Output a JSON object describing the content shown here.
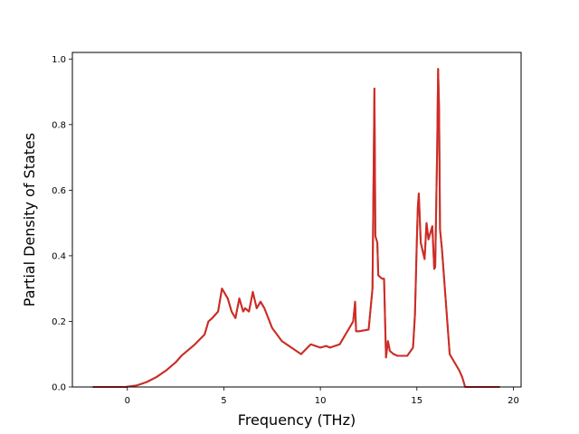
{
  "chart_data": {
    "type": "line",
    "title": "",
    "xlabel": "Frequency (THz)",
    "ylabel": "Partial Density of States",
    "xlim": [
      -2.85,
      20.4
    ],
    "ylim": [
      0.0,
      1.02
    ],
    "xticks": [
      0,
      5,
      10,
      15,
      20
    ],
    "xtick_labels": [
      "0",
      "5",
      "10",
      "15",
      "20"
    ],
    "yticks": [
      0.0,
      0.2,
      0.4,
      0.6,
      0.8,
      1.0
    ],
    "ytick_labels": [
      "0.0",
      "0.2",
      "0.4",
      "0.6",
      "0.8",
      "1.0"
    ],
    "grid": false,
    "legend": "none",
    "series": [
      {
        "color": "#2ca02c",
        "x": [
          -1.8,
          -0.1,
          0.5,
          1.0,
          1.5,
          2.0,
          2.5,
          2.8,
          3.0,
          3.5,
          4.0,
          4.2,
          4.4,
          4.7,
          4.9,
          5.2,
          5.4,
          5.6,
          5.8,
          6.0,
          6.1,
          6.3,
          6.5,
          6.7,
          6.9,
          7.1,
          7.5,
          8.0,
          8.5,
          9.0,
          9.5,
          10.0,
          10.3,
          10.5,
          11.0,
          11.5,
          11.7,
          11.8,
          11.85,
          12.0,
          12.5,
          12.7,
          12.8,
          12.85,
          12.95,
          13.0,
          13.2,
          13.3,
          13.4,
          13.5,
          13.6,
          13.8,
          14.0,
          14.5,
          14.8,
          14.9,
          15.0,
          15.05,
          15.1,
          15.2,
          15.4,
          15.5,
          15.6,
          15.8,
          15.9,
          15.95,
          16.05,
          16.1,
          16.15,
          16.2,
          16.3,
          16.5,
          16.7,
          17.0,
          17.2,
          17.35,
          17.5,
          18.0,
          19.3
        ],
        "y": [
          0.0,
          0.0,
          0.005,
          0.015,
          0.03,
          0.05,
          0.075,
          0.095,
          0.105,
          0.13,
          0.16,
          0.2,
          0.21,
          0.23,
          0.3,
          0.27,
          0.23,
          0.21,
          0.27,
          0.23,
          0.24,
          0.23,
          0.29,
          0.24,
          0.26,
          0.24,
          0.18,
          0.14,
          0.12,
          0.1,
          0.13,
          0.12,
          0.125,
          0.12,
          0.13,
          0.18,
          0.2,
          0.26,
          0.17,
          0.17,
          0.175,
          0.3,
          0.91,
          0.46,
          0.44,
          0.34,
          0.33,
          0.33,
          0.09,
          0.14,
          0.11,
          0.1,
          0.095,
          0.095,
          0.12,
          0.22,
          0.45,
          0.55,
          0.59,
          0.44,
          0.39,
          0.5,
          0.45,
          0.49,
          0.36,
          0.365,
          0.72,
          0.97,
          0.85,
          0.48,
          0.42,
          0.26,
          0.1,
          0.07,
          0.05,
          0.03,
          0.0,
          0.0,
          0.0
        ]
      },
      {
        "color": "#d62728",
        "x": [
          -1.8,
          -0.1,
          0.5,
          1.0,
          1.5,
          2.0,
          2.5,
          2.8,
          3.0,
          3.5,
          4.0,
          4.2,
          4.4,
          4.7,
          4.9,
          5.2,
          5.4,
          5.6,
          5.8,
          6.0,
          6.1,
          6.3,
          6.5,
          6.7,
          6.9,
          7.1,
          7.5,
          8.0,
          8.5,
          9.0,
          9.5,
          10.0,
          10.3,
          10.5,
          11.0,
          11.5,
          11.7,
          11.8,
          11.85,
          12.0,
          12.5,
          12.7,
          12.8,
          12.85,
          12.95,
          13.0,
          13.2,
          13.3,
          13.4,
          13.5,
          13.6,
          13.8,
          14.0,
          14.5,
          14.8,
          14.9,
          15.0,
          15.05,
          15.1,
          15.2,
          15.4,
          15.5,
          15.6,
          15.8,
          15.9,
          15.95,
          16.05,
          16.1,
          16.15,
          16.2,
          16.3,
          16.5,
          16.7,
          17.0,
          17.2,
          17.35,
          17.5,
          18.0,
          19.3
        ],
        "y": [
          0.0,
          0.0,
          0.005,
          0.015,
          0.03,
          0.05,
          0.075,
          0.095,
          0.105,
          0.13,
          0.16,
          0.2,
          0.21,
          0.23,
          0.3,
          0.27,
          0.23,
          0.21,
          0.27,
          0.23,
          0.24,
          0.23,
          0.29,
          0.24,
          0.26,
          0.24,
          0.18,
          0.14,
          0.12,
          0.1,
          0.13,
          0.12,
          0.125,
          0.12,
          0.13,
          0.18,
          0.2,
          0.26,
          0.17,
          0.17,
          0.175,
          0.3,
          0.91,
          0.46,
          0.44,
          0.34,
          0.33,
          0.33,
          0.09,
          0.14,
          0.11,
          0.1,
          0.095,
          0.095,
          0.12,
          0.22,
          0.45,
          0.55,
          0.59,
          0.44,
          0.39,
          0.5,
          0.45,
          0.49,
          0.36,
          0.37,
          0.72,
          0.97,
          0.85,
          0.48,
          0.42,
          0.26,
          0.1,
          0.07,
          0.05,
          0.03,
          0.0,
          0.0,
          0.0
        ]
      }
    ]
  }
}
